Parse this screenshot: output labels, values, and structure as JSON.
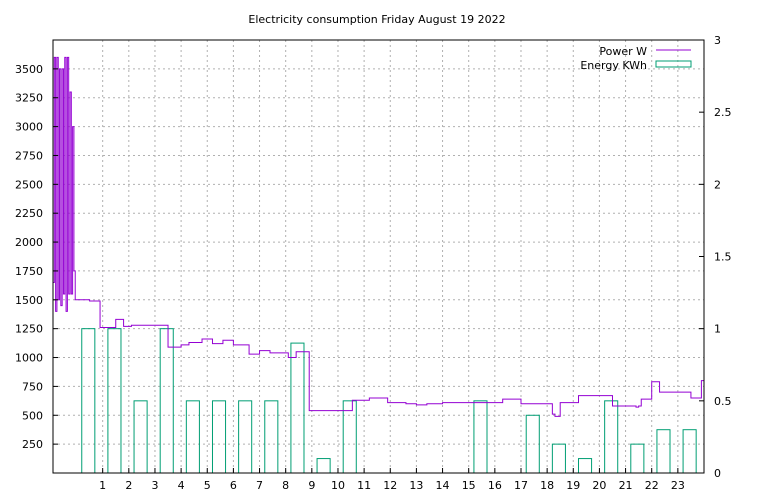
{
  "chart_data": {
    "type": "line",
    "title": "Electricity consumption Friday August 19 2022",
    "xlabel": "",
    "ylabel": "",
    "y2label": "",
    "grid": true,
    "legend_position": "top-right",
    "xlim": [
      -0.9,
      24
    ],
    "ylim": [
      0,
      3750
    ],
    "y2lim": [
      0,
      3
    ],
    "x_ticks": [
      1,
      2,
      3,
      4,
      5,
      6,
      7,
      8,
      9,
      10,
      11,
      12,
      13,
      14,
      15,
      16,
      17,
      18,
      19,
      20,
      21,
      22,
      23
    ],
    "y_ticks": [
      250,
      500,
      750,
      1000,
      1250,
      1500,
      1750,
      2000,
      2250,
      2500,
      2750,
      3000,
      3250,
      3500
    ],
    "y2_ticks": [
      0,
      0.5,
      1,
      1.5,
      2,
      2.5,
      3
    ],
    "colors": {
      "power": "#9400d3",
      "energy": "#009e73"
    },
    "series": [
      {
        "name": "Power W",
        "axis": "left",
        "style": "steps",
        "x": [
          -0.9,
          -0.85,
          -0.8,
          -0.75,
          -0.7,
          -0.65,
          -0.6,
          -0.55,
          -0.5,
          -0.45,
          -0.4,
          -0.35,
          -0.3,
          -0.25,
          -0.2,
          -0.15,
          -0.1,
          -0.05,
          0,
          0.05,
          0.1,
          0.15,
          0.2,
          0.25,
          0.3,
          0.35,
          0.4,
          0.5,
          0.9,
          1.0,
          1.5,
          1.8,
          2.1,
          2.5,
          2.7,
          3.0,
          3.3,
          3.5,
          4.0,
          4.3,
          4.8,
          5.2,
          5.6,
          6.0,
          6.6,
          7.0,
          7.4,
          8.1,
          8.4,
          8.9,
          9.1,
          9.5,
          10.4,
          10.55,
          11.2,
          11.9,
          12.6,
          13.0,
          13.4,
          14.0,
          14.5,
          15.5,
          16.3,
          17.0,
          17.8,
          17.86,
          18.0,
          18.2,
          18.3,
          18.5,
          19.0,
          19.2,
          19.5,
          20.0,
          20.5,
          21.0,
          21.4,
          21.5,
          21.6,
          21.7,
          22.0,
          22.3,
          22.5,
          22.7,
          23.0,
          23.5,
          23.9
        ],
        "values": [
          1650,
          3600,
          1400,
          3600,
          1500,
          3500,
          1450,
          3500,
          1550,
          3600,
          1400,
          3600,
          1550,
          3300,
          1550,
          3000,
          1750,
          1500,
          1500,
          1500,
          1500,
          1500,
          1500,
          1500,
          1500,
          1500,
          1500,
          1490,
          1260,
          1260,
          1330,
          1270,
          1280,
          1280,
          1280,
          1280,
          1280,
          1090,
          1110,
          1130,
          1160,
          1120,
          1150,
          1110,
          1030,
          1060,
          1040,
          1000,
          1050,
          540,
          540,
          540,
          540,
          630,
          650,
          610,
          600,
          590,
          600,
          610,
          610,
          610,
          640,
          600,
          600,
          600,
          600,
          510,
          490,
          610,
          610,
          670,
          670,
          670,
          580,
          580,
          570,
          580,
          640,
          640,
          790,
          700,
          700,
          700,
          700,
          650,
          800
        ]
      },
      {
        "name": "Energy KWh",
        "axis": "right",
        "style": "bars",
        "x": [
          0,
          1,
          2,
          3,
          4,
          5,
          6,
          7,
          8,
          9,
          10,
          11,
          12,
          13,
          14,
          15,
          16,
          17,
          18,
          19,
          20,
          21,
          22,
          23
        ],
        "values": [
          1.0,
          1.0,
          0.5,
          1.0,
          0.5,
          0.5,
          0.5,
          0.5,
          0.9,
          0.1,
          0.5,
          0,
          0,
          0,
          0,
          0.5,
          0,
          0.4,
          0.2,
          0.1,
          0.5,
          0.2,
          0.3,
          0.3
        ]
      }
    ]
  }
}
